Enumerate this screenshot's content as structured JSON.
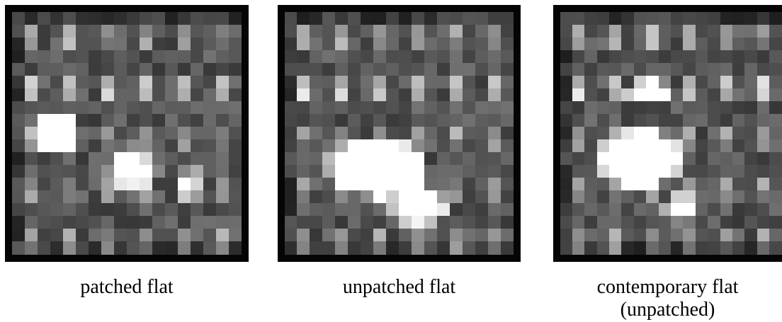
{
  "figure": {
    "panels": [
      {
        "caption": [
          "patched flat"
        ],
        "hotspots": [
          [
            3.5,
            9.5,
            1.6,
            1.6,
            2.4
          ],
          [
            9.4,
            12.3,
            1.8,
            1.5,
            1.5
          ],
          [
            14,
            13.5,
            1.2,
            1.2,
            1.0
          ]
        ]
      },
      {
        "caption": [
          "unpatched flat"
        ],
        "hotspots": [
          [
            7.3,
            12.2,
            3.4,
            2.0,
            3.0
          ],
          [
            10.5,
            15.2,
            2.0,
            1.4,
            2.0
          ]
        ]
      },
      {
        "caption": [
          "contemporary flat",
          "(unpatched)"
        ],
        "hotspots": [
          [
            6.5,
            11.5,
            3.0,
            2.0,
            3.0
          ],
          [
            7.3,
            6.3,
            1.8,
            0.9,
            2.0
          ],
          [
            9.8,
            15.4,
            1.3,
            1.0,
            1.4
          ]
        ]
      }
    ]
  }
}
